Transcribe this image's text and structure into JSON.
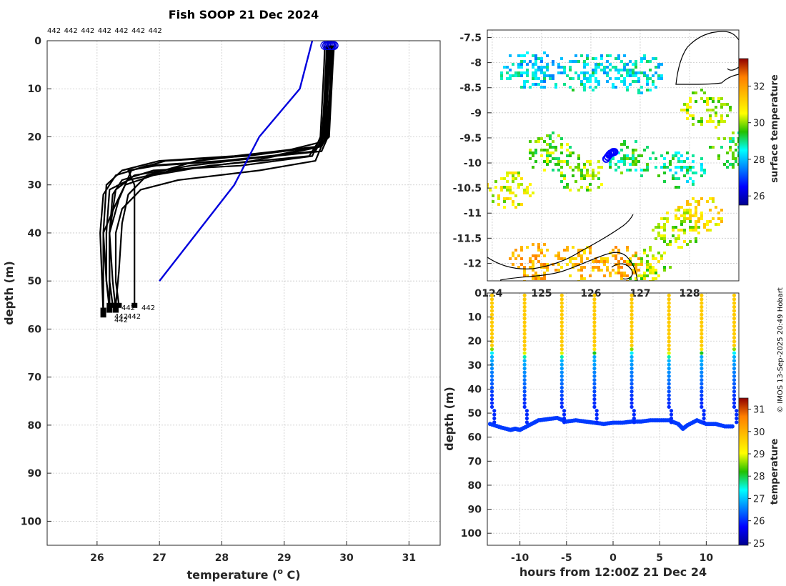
{
  "chart_data": [
    {
      "panel": "profiles",
      "type": "line",
      "title": "Fish SOOP 21 Dec 2024",
      "xlabel": "temperature (",
      "xlabel_sup": "o",
      "xlabel_end": " C)",
      "ylabel": "depth (m)",
      "xlim": [
        25.2,
        31.5
      ],
      "ylim": [
        0,
        105
      ],
      "y_reversed": true,
      "xticks": [
        26,
        27,
        28,
        29,
        30,
        31
      ],
      "yticks": [
        0,
        10,
        20,
        30,
        40,
        50,
        60,
        70,
        80,
        90,
        100
      ],
      "top_labels": [
        "442",
        "442",
        "442",
        "442",
        "442",
        "442",
        "442"
      ],
      "bottom_labels": [
        "442",
        "442",
        "442",
        "442",
        "442"
      ],
      "climatology": {
        "name": "climatology",
        "color": "#0000dd",
        "temperature": [
          29.45,
          29.25,
          28.6,
          28.2,
          27.6,
          27.0
        ],
        "depth": [
          0,
          10,
          20,
          30,
          40,
          50
        ]
      },
      "profiles": [
        {
          "temperature": [
            29.8,
            29.78,
            29.76,
            29.74,
            29.72,
            29.55,
            28.2,
            27.0,
            26.4,
            26.15,
            26.1,
            26.1,
            26.1
          ],
          "depth": [
            1,
            5,
            10,
            15,
            20,
            22,
            24,
            25,
            27,
            30,
            40,
            50,
            56
          ]
        },
        {
          "temperature": [
            29.7,
            29.68,
            29.66,
            29.64,
            29.62,
            29.5,
            28.0,
            26.8,
            26.3,
            26.1,
            26.05,
            26.08,
            26.1
          ],
          "depth": [
            1,
            5,
            10,
            15,
            20,
            23,
            25,
            26,
            28,
            32,
            40,
            50,
            57
          ]
        },
        {
          "temperature": [
            29.75,
            29.74,
            29.73,
            29.7,
            29.68,
            29.6,
            28.5,
            27.2,
            26.5,
            26.2,
            26.15,
            26.15,
            26.2
          ],
          "depth": [
            1,
            5,
            10,
            15,
            20,
            22,
            25,
            27,
            29,
            31,
            40,
            50,
            55
          ]
        },
        {
          "temperature": [
            29.65,
            29.64,
            29.62,
            29.6,
            29.58,
            29.45,
            28.3,
            26.9,
            26.4,
            26.25,
            26.2,
            26.25,
            26.3
          ],
          "depth": [
            1,
            5,
            10,
            15,
            20,
            24,
            26,
            27,
            29,
            32,
            40,
            50,
            56
          ]
        },
        {
          "temperature": [
            29.72,
            29.7,
            29.68,
            29.66,
            29.64,
            29.55,
            28.8,
            27.5,
            26.6,
            26.3,
            26.2,
            26.2,
            26.25
          ],
          "depth": [
            1,
            5,
            10,
            15,
            20,
            22,
            24,
            26,
            28,
            31,
            40,
            50,
            55
          ]
        },
        {
          "temperature": [
            29.78,
            29.76,
            29.74,
            29.72,
            29.7,
            29.6,
            28.1,
            26.95,
            26.5,
            26.6,
            26.6,
            26.6,
            26.6
          ],
          "depth": [
            1,
            5,
            10,
            15,
            20,
            23,
            25,
            26,
            27,
            30,
            35,
            45,
            55
          ]
        },
        {
          "temperature": [
            29.68,
            29.67,
            29.65,
            29.63,
            29.6,
            29.4,
            27.8,
            26.9,
            26.45,
            26.3,
            26.1,
            26.15,
            26.2
          ],
          "depth": [
            1,
            5,
            10,
            15,
            20,
            24,
            26,
            28,
            30,
            34,
            40,
            50,
            56
          ]
        },
        {
          "temperature": [
            29.74,
            29.72,
            29.7,
            29.68,
            29.66,
            29.5,
            28.6,
            27.3,
            26.7,
            26.4,
            26.3,
            26.3,
            26.35
          ],
          "depth": [
            1,
            5,
            10,
            15,
            20,
            25,
            27,
            29,
            31,
            35,
            40,
            50,
            55
          ]
        },
        {
          "temperature": [
            29.7,
            29.69,
            29.67,
            29.65,
            29.63,
            29.58,
            28.4,
            27.1,
            26.55,
            26.35,
            26.2,
            26.2,
            26.2
          ],
          "depth": [
            1,
            5,
            10,
            15,
            20,
            22,
            24,
            25,
            27,
            33,
            40,
            50,
            56
          ]
        },
        {
          "temperature": [
            29.76,
            29.75,
            29.73,
            29.71,
            29.69,
            29.62,
            29.0,
            27.6,
            26.8,
            26.5,
            26.4,
            26.35,
            26.3
          ],
          "depth": [
            1,
            5,
            10,
            15,
            20,
            21,
            23,
            25,
            28,
            32,
            38,
            48,
            55
          ]
        }
      ]
    },
    {
      "panel": "map",
      "type": "heatmap",
      "xlim": [
        123.9,
        129.0
      ],
      "ylim": [
        -12.35,
        -7.35
      ],
      "xticks": [
        124,
        125,
        126,
        127,
        128
      ],
      "xtick_labels": [
        "124",
        "125",
        "126",
        "127",
        "128"
      ],
      "yticks": [
        -7.5,
        -8,
        -8.5,
        -9,
        -9.5,
        -10,
        -10.5,
        -11,
        -11.5,
        -12
      ],
      "colorbar_label": "surface temperature",
      "colorbar_range": [
        25.5,
        33.5
      ],
      "colorbar_ticks": [
        26,
        28,
        30,
        32
      ],
      "sst_patches": [
        {
          "lon": 124.6,
          "lat": -8.15,
          "sst": 28.4
        },
        {
          "lon": 125.0,
          "lat": -8.15,
          "sst": 28.2
        },
        {
          "lon": 125.8,
          "lat": -8.2,
          "sst": 28.6
        },
        {
          "lon": 126.5,
          "lat": -8.15,
          "sst": 28.3
        },
        {
          "lon": 127.0,
          "lat": -8.2,
          "sst": 28.5
        },
        {
          "lon": 125.1,
          "lat": -9.75,
          "sst": 29.8
        },
        {
          "lon": 126.8,
          "lat": -9.9,
          "sst": 29.2
        },
        {
          "lon": 125.8,
          "lat": -10.2,
          "sst": 29.9
        },
        {
          "lon": 124.3,
          "lat": -10.5,
          "sst": 30.5
        },
        {
          "lon": 127.8,
          "lat": -10.1,
          "sst": 28.9
        },
        {
          "lon": 128.3,
          "lat": -8.9,
          "sst": 30.2
        },
        {
          "lon": 128.9,
          "lat": -9.7,
          "sst": 29.5
        },
        {
          "lon": 128.2,
          "lat": -11.0,
          "sst": 30.9
        },
        {
          "lon": 127.7,
          "lat": -11.3,
          "sst": 30.3
        },
        {
          "lon": 124.8,
          "lat": -11.95,
          "sst": 31.8
        },
        {
          "lon": 125.7,
          "lat": -11.95,
          "sst": 31.5
        },
        {
          "lon": 126.5,
          "lat": -12.0,
          "sst": 31.7
        },
        {
          "lon": 127.1,
          "lat": -12.05,
          "sst": 30.2
        }
      ],
      "track": [
        {
          "lon": 126.31,
          "lat": -9.92
        },
        {
          "lon": 126.34,
          "lat": -9.88
        },
        {
          "lon": 126.37,
          "lat": -9.84
        },
        {
          "lon": 126.4,
          "lat": -9.81
        },
        {
          "lon": 126.43,
          "lat": -9.8
        },
        {
          "lon": 126.45,
          "lat": -9.78
        },
        {
          "lon": 126.48,
          "lat": -9.78
        }
      ]
    },
    {
      "panel": "section",
      "type": "scatter",
      "xlabel": "hours from 12:00Z 21 Dec 24",
      "ylabel": "depth (m)",
      "xlim": [
        -13.5,
        13.5
      ],
      "ylim": [
        0,
        105
      ],
      "y_reversed": true,
      "xticks": [
        -10,
        -5,
        0,
        5,
        10
      ],
      "yticks": [
        0,
        10,
        20,
        30,
        40,
        50,
        60,
        70,
        80,
        90,
        100
      ],
      "colorbar_label": "temperature",
      "colorbar_range": [
        24.9,
        31.5
      ],
      "colorbar_ticks": [
        25,
        26,
        27,
        28,
        29,
        30,
        31
      ],
      "casts_hours": [
        -13,
        -9.5,
        -5.5,
        -2,
        2,
        6,
        9.5,
        13
      ],
      "thermocline_depth": [
        23,
        25,
        25,
        24,
        23,
        25,
        24,
        23
      ],
      "bottom_depth_hours": [
        -13.2,
        -12,
        -11,
        -10.5,
        -10,
        -9,
        -8,
        -7,
        -6,
        -5,
        -4,
        -3,
        -2,
        -1,
        0,
        1,
        2,
        3,
        4,
        5,
        6,
        7,
        7.5,
        8,
        9,
        10,
        11,
        12,
        13
      ],
      "bottom_depth": [
        54.5,
        56,
        57,
        56.5,
        57,
        55,
        53,
        52.5,
        52,
        53.5,
        53,
        53.5,
        54,
        54.5,
        54,
        54,
        53.5,
        53.5,
        53,
        53,
        53,
        54.5,
        56.5,
        55,
        53,
        54.5,
        54.5,
        55.5,
        55.5
      ]
    }
  ],
  "watermark": "© IMOS 13-Sep-2025 20:49 Hobart"
}
